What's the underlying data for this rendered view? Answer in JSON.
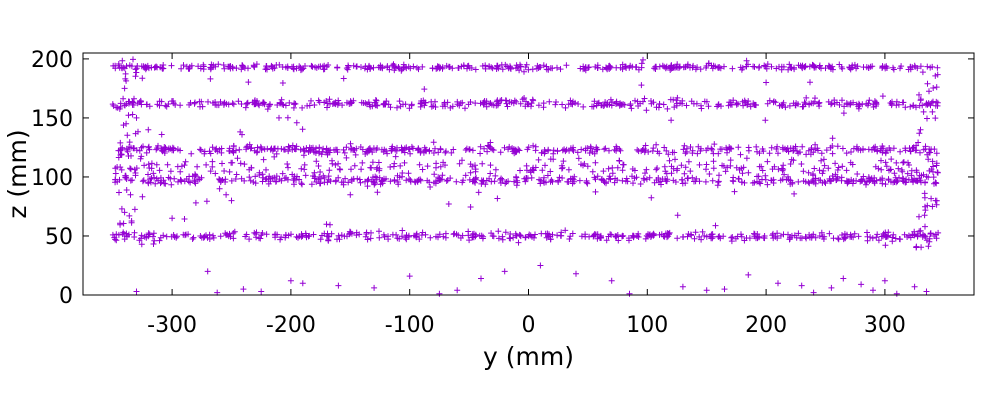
{
  "chart_data": {
    "type": "scatter",
    "title": "",
    "xlabel": "y (mm)",
    "ylabel": "z (mm)",
    "xlim": [
      -375,
      375
    ],
    "ylim": [
      0,
      205
    ],
    "xticks": [
      -300,
      -200,
      -100,
      0,
      100,
      200,
      300
    ],
    "yticks": [
      0,
      50,
      100,
      150,
      200
    ],
    "grid": false,
    "legend": "none",
    "marker": "+",
    "colors": {
      "points": "#9400d3",
      "axes": "#000000"
    },
    "x_extent": [
      -350,
      345
    ],
    "series": [
      {
        "name": "",
        "bands": [
          {
            "z_center": 50,
            "z_spread": 3,
            "density": "high"
          },
          {
            "z_center": 97,
            "z_spread": 3,
            "density": "high"
          },
          {
            "z_center": 108,
            "z_spread": 8,
            "density": "medium"
          },
          {
            "z_center": 123,
            "z_spread": 3,
            "density": "high"
          },
          {
            "z_center": 162,
            "z_spread": 3,
            "density": "high"
          },
          {
            "z_center": 193,
            "z_spread": 2,
            "density": "high"
          }
        ],
        "scattered_points": [
          [
            -330,
            3
          ],
          [
            -270,
            20
          ],
          [
            -262,
            2
          ],
          [
            -240,
            5
          ],
          [
            -225,
            3
          ],
          [
            -200,
            12
          ],
          [
            -190,
            10
          ],
          [
            -160,
            8
          ],
          [
            -130,
            6
          ],
          [
            -100,
            16
          ],
          [
            -75,
            1
          ],
          [
            -60,
            4
          ],
          [
            -40,
            14
          ],
          [
            -20,
            20
          ],
          [
            10,
            25
          ],
          [
            40,
            18
          ],
          [
            70,
            12
          ],
          [
            85,
            1
          ],
          [
            130,
            7
          ],
          [
            150,
            4
          ],
          [
            165,
            5
          ],
          [
            185,
            17
          ],
          [
            210,
            10
          ],
          [
            230,
            8
          ],
          [
            240,
            2
          ],
          [
            255,
            6
          ],
          [
            265,
            14
          ],
          [
            280,
            9
          ],
          [
            290,
            4
          ],
          [
            300,
            12
          ],
          [
            310,
            1
          ],
          [
            325,
            7
          ],
          [
            335,
            3
          ],
          [
            -315,
            46
          ],
          [
            -340,
            70
          ],
          [
            -335,
            85
          ],
          [
            -300,
            65
          ],
          [
            -250,
            80
          ],
          [
            -170,
            60
          ],
          [
            -320,
            140
          ],
          [
            -340,
            175
          ],
          [
            -330,
            150
          ],
          [
            -210,
            150
          ],
          [
            -150,
            85
          ],
          [
            120,
            148
          ],
          [
            200,
            180
          ],
          [
            330,
            140
          ],
          [
            340,
            75
          ],
          [
            -260,
            90
          ],
          [
            -280,
            78
          ]
        ]
      }
    ]
  }
}
